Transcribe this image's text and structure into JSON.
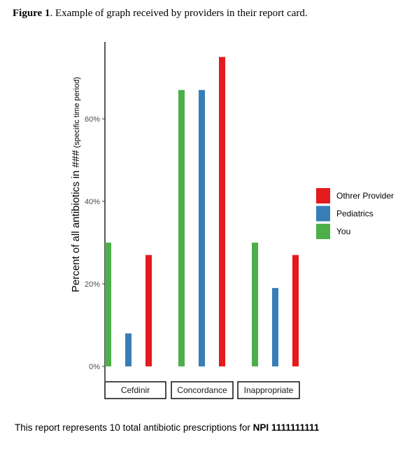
{
  "caption": {
    "label": "Figure 1",
    "text": ".  Example of graph received by providers in their report card."
  },
  "footer": {
    "text": "This report represents 10 total antibiotic prescriptions for ",
    "bold": "NPI 1111111111"
  },
  "chart_data": {
    "type": "bar",
    "ylabel": "Percent of all antibiotics in ### (specific time period)",
    "ylabel_main": "Percent of all antibiotics in ###",
    "ylabel_small": " (specific time period)",
    "ylim": [
      0,
      78
    ],
    "yticks": [
      {
        "value": 0,
        "label": "0%"
      },
      {
        "value": 20,
        "label": "20%"
      },
      {
        "value": 40,
        "label": "40%"
      },
      {
        "value": 60,
        "label": "60%"
      }
    ],
    "grid": false,
    "legend_position": "right",
    "categories": [
      "Cefdinir",
      "Concordance",
      "Inappropriate"
    ],
    "series": [
      {
        "name": "You",
        "color": "#4DAF4A",
        "values": [
          30,
          67,
          30
        ]
      },
      {
        "name": "Pediatrics",
        "color": "#377EB8",
        "values": [
          8,
          67,
          19
        ]
      },
      {
        "name": "Othrer Provider",
        "color": "#E41A1C",
        "values": [
          27,
          75,
          27
        ]
      }
    ],
    "legend_order": [
      "Othrer Provider",
      "Pediatrics",
      "You"
    ]
  }
}
